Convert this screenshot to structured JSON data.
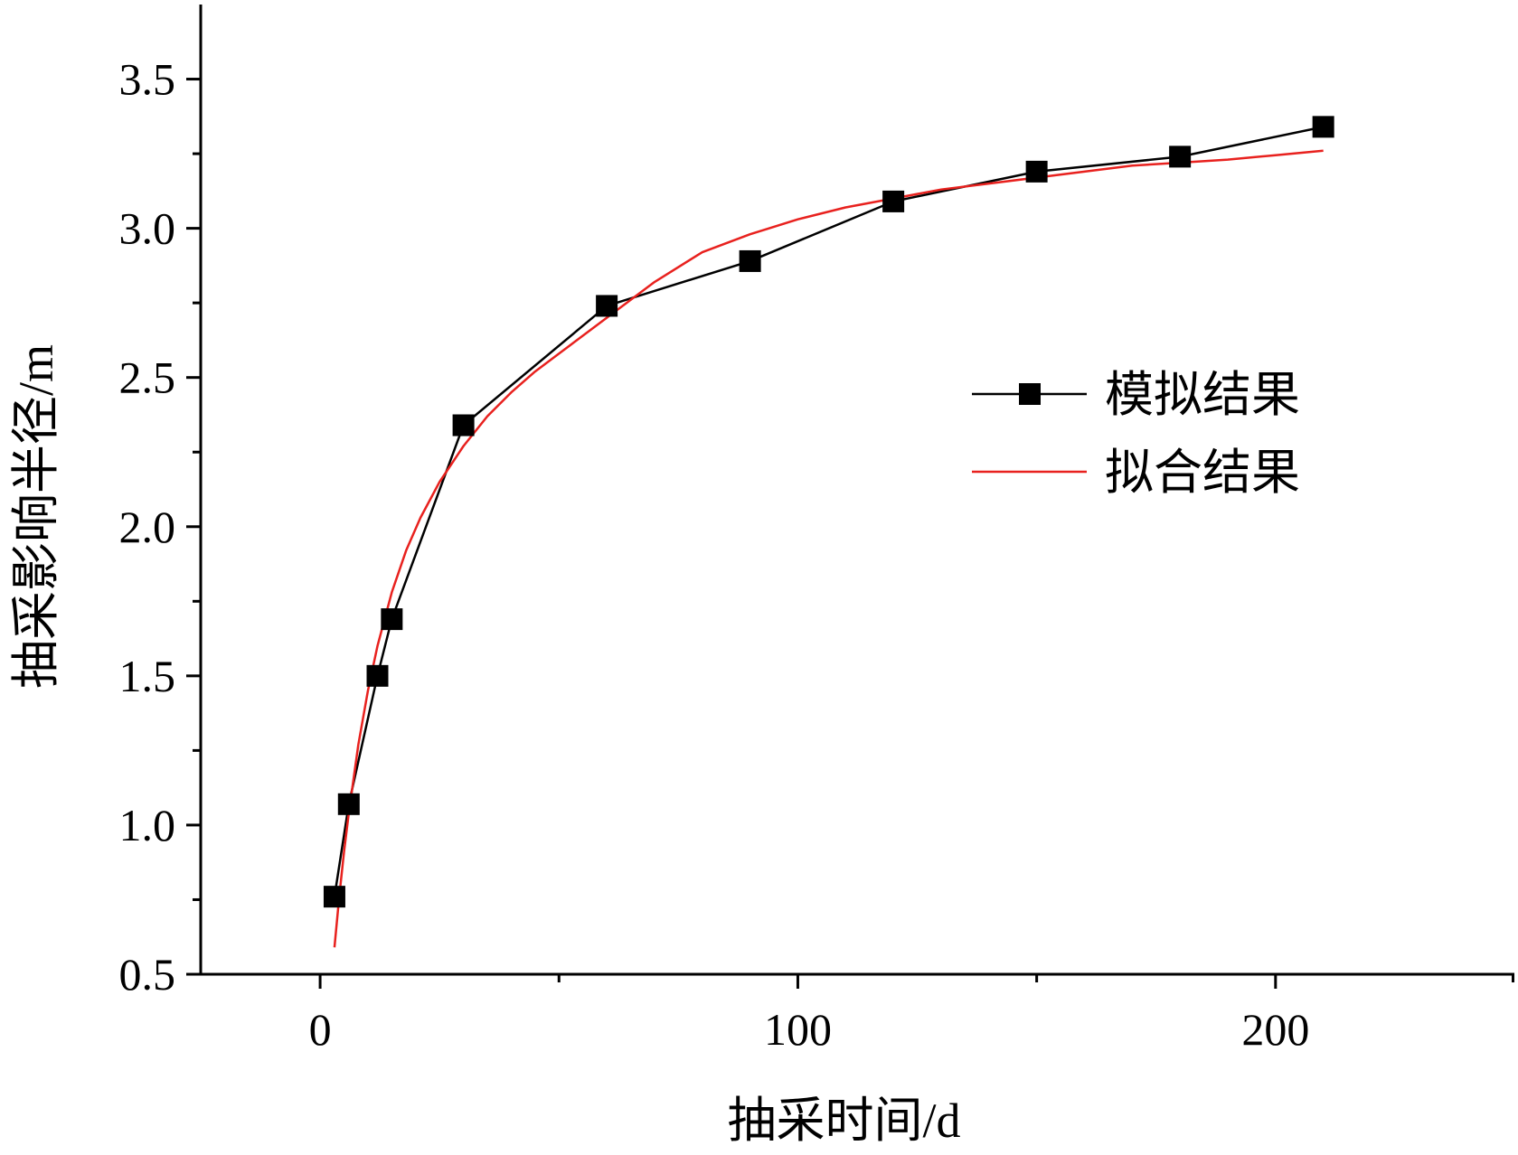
{
  "chart_data": {
    "type": "line",
    "title": "",
    "xlabel": "抽采时间/d",
    "ylabel": "抽采影响半径/m",
    "xlim": [
      -25,
      250
    ],
    "ylim": [
      0.5,
      3.75
    ],
    "xticks": [
      0,
      100,
      200
    ],
    "xtick_labels": [
      "0",
      "100",
      "200"
    ],
    "xminor": [
      50,
      150,
      250
    ],
    "yticks": [
      0.5,
      1.0,
      1.5,
      2.0,
      2.5,
      3.0,
      3.5
    ],
    "ytick_labels": [
      "0.5",
      "1.0",
      "1.5",
      "2.0",
      "2.5",
      "3.0",
      "3.5"
    ],
    "yminor": [
      0.75,
      1.25,
      1.75,
      2.25,
      2.75,
      3.25
    ],
    "grid": false,
    "legend_position": "right",
    "series": [
      {
        "name": "模拟结果",
        "color": "#000000",
        "marker": "square",
        "x": [
          3,
          6,
          12,
          15,
          30,
          60,
          90,
          120,
          150,
          180,
          210
        ],
        "y": [
          0.76,
          1.07,
          1.5,
          1.69,
          2.34,
          2.74,
          2.89,
          3.09,
          3.19,
          3.24,
          3.34
        ]
      },
      {
        "name": "拟合结果",
        "color": "#e8211e",
        "marker": "none",
        "x": [
          3,
          4,
          5,
          6,
          8,
          10,
          12,
          15,
          18,
          21,
          25,
          30,
          35,
          40,
          45,
          50,
          60,
          70,
          80,
          90,
          100,
          110,
          120,
          130,
          140,
          150,
          160,
          170,
          180,
          190,
          200,
          210
        ],
        "y": [
          0.59,
          0.76,
          0.91,
          1.04,
          1.27,
          1.45,
          1.6,
          1.78,
          1.92,
          2.03,
          2.15,
          2.27,
          2.37,
          2.45,
          2.52,
          2.58,
          2.7,
          2.82,
          2.92,
          2.98,
          3.03,
          3.07,
          3.1,
          3.13,
          3.15,
          3.17,
          3.19,
          3.21,
          3.22,
          3.23,
          3.245,
          3.26
        ]
      }
    ]
  }
}
